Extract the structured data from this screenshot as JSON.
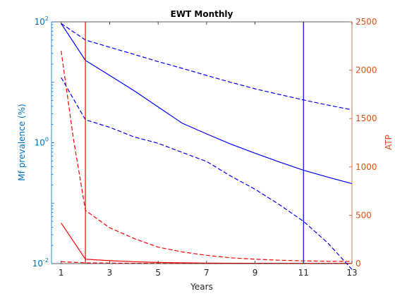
{
  "chart_data": {
    "type": "line",
    "title": "EWT Monthly",
    "xlabel": "Years",
    "ylabel_left": "Mf prevalence (%)",
    "ylabel_right": "ATP",
    "xlim": [
      0.6,
      13
    ],
    "ylim_left": [
      0.01,
      100
    ],
    "yscale_left": "log",
    "ylim_right": [
      0,
      2500
    ],
    "xticks": [
      "1",
      "3",
      "5",
      "7",
      "9",
      "11",
      "13"
    ],
    "yticks_left": [
      {
        "base": "10",
        "exp": "-2",
        "value": 0.01
      },
      {
        "base": "10",
        "exp": "0",
        "value": 1
      },
      {
        "base": "10",
        "exp": "2",
        "value": 100
      }
    ],
    "yticks_right": [
      "0",
      "500",
      "1000",
      "1500",
      "2000",
      "2500"
    ],
    "colors": {
      "left_axis": "#0072BD",
      "right_axis": "#D95319",
      "mf": "#0000FF",
      "atp": "#FF0000",
      "frame": "#262626"
    },
    "series": [
      {
        "axis": "left",
        "style": "solid",
        "color": "#0000FF",
        "x": [
          1,
          2,
          3,
          4,
          5,
          6,
          7,
          8,
          9,
          10,
          11,
          12,
          13
        ],
        "y": [
          94,
          23,
          13,
          7.3,
          3.9,
          2.1,
          1.4,
          0.95,
          0.67,
          0.48,
          0.35,
          0.27,
          0.21
        ]
      },
      {
        "axis": "left",
        "style": "dashed",
        "color": "#0000FF",
        "x": [
          1,
          2,
          3,
          4,
          5,
          6,
          7,
          8,
          9,
          10,
          11,
          12,
          13
        ],
        "y": [
          94,
          50,
          38,
          29,
          22,
          17,
          13,
          10,
          7.8,
          6.3,
          5.1,
          4.2,
          3.5
        ]
      },
      {
        "axis": "left",
        "style": "dashed",
        "color": "#0000FF",
        "x": [
          1,
          2,
          3,
          4,
          5,
          6,
          7,
          8,
          9,
          10,
          11,
          12,
          13
        ],
        "y": [
          12,
          2.4,
          1.8,
          1.25,
          0.98,
          0.69,
          0.49,
          0.28,
          0.17,
          0.095,
          0.05,
          0.022,
          0.008
        ]
      },
      {
        "axis": "right",
        "style": "dashed",
        "color": "#FF0000",
        "x": [
          1,
          1.5,
          2,
          3,
          4,
          5,
          6,
          7,
          8,
          9,
          10,
          11,
          12,
          13
        ],
        "y": [
          2200,
          1300,
          550,
          370,
          260,
          170,
          120,
          85,
          60,
          45,
          35,
          28,
          24,
          22
        ]
      },
      {
        "axis": "right",
        "style": "solid",
        "color": "#FF0000",
        "x": [
          1,
          2,
          3,
          4,
          5,
          6,
          7,
          8,
          9,
          10,
          11,
          12,
          13
        ],
        "y": [
          420,
          45,
          30,
          20,
          12,
          8,
          5,
          4,
          3,
          2,
          2,
          1,
          1
        ]
      },
      {
        "axis": "right",
        "style": "dashed",
        "color": "#FF0000",
        "x": [
          1,
          2,
          3,
          4,
          5,
          6,
          7,
          8,
          9,
          10,
          11,
          12,
          13
        ],
        "y": [
          20,
          8,
          5,
          3,
          2,
          2,
          1,
          1,
          1,
          1,
          1,
          1,
          1
        ]
      }
    ],
    "vlines": [
      {
        "x": 2,
        "color": "#FF0000"
      },
      {
        "x": 11,
        "color": "#0000FF"
      }
    ],
    "grid": false,
    "legend": "none"
  }
}
